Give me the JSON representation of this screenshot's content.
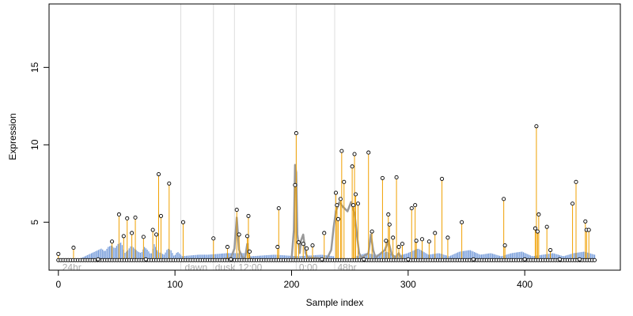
{
  "chart_data": {
    "type": "line",
    "title": "",
    "xlabel": "Sample index",
    "ylabel": "Expression",
    "xlim": [
      -8,
      482
    ],
    "ylim": [
      1.9,
      19.1
    ],
    "xticks": [
      0,
      100,
      200,
      300,
      400
    ],
    "yticks": [
      5,
      10,
      15
    ],
    "grid": false,
    "legend": "none",
    "colors": {
      "stem": "#f0a000",
      "bar": "#6f97d8",
      "curve": "#999999",
      "point_edge": "#000000",
      "divider": "#dddddd",
      "annotation": "#aaaaaa"
    },
    "baseline": 2.55,
    "divider_lines": [
      105,
      133,
      151,
      204,
      237
    ],
    "annotations": [
      {
        "text": "24hr",
        "x": 2
      },
      {
        "text": "dawn",
        "x": 107
      },
      {
        "text": "dusk",
        "x": 133
      },
      {
        "text": "12:00",
        "x": 153
      },
      {
        "text": "0:00",
        "x": 205
      },
      {
        "text": "48hr",
        "x": 238
      }
    ],
    "bar_segments": [
      {
        "start": 20,
        "end": 105,
        "values": [
          2.7,
          2.8,
          2.9,
          3.0,
          3.1,
          3.2,
          3.3,
          3.1,
          3.4,
          3.5,
          3.3,
          3.6,
          3.7,
          3.0,
          3.2,
          3.5,
          3.3,
          3.1,
          3.0,
          3.4,
          3.2,
          2.9,
          3.6,
          3.1,
          3.0,
          2.9,
          3.3,
          3.2,
          2.8,
          3.1,
          2.9
        ]
      },
      {
        "start": 105,
        "end": 160,
        "values": [
          2.8,
          2.85,
          2.9,
          2.9,
          2.95,
          3.0,
          3.0,
          3.0
        ]
      },
      {
        "start": 165,
        "end": 236,
        "values": [
          2.8,
          2.85,
          2.9,
          2.85,
          2.8,
          2.85,
          2.9,
          2.8
        ]
      },
      {
        "start": 255,
        "end": 460,
        "values": [
          2.8,
          3.0,
          2.9,
          3.1,
          2.8,
          3.0,
          3.3,
          2.9,
          3.0,
          2.8,
          3.1,
          3.2,
          2.9,
          3.0,
          2.8,
          3.0,
          3.1,
          2.8,
          2.9,
          3.0,
          2.8,
          3.0,
          3.1,
          2.9
        ]
      }
    ],
    "curve": [
      [
        140,
        2.6
      ],
      [
        148,
        2.7
      ],
      [
        151,
        3.3
      ],
      [
        153,
        5.3
      ],
      [
        155,
        3.2
      ],
      [
        158,
        2.7
      ],
      [
        160,
        2.6
      ],
      [
        162,
        3.6
      ],
      [
        164,
        2.7
      ],
      [
        166,
        2.6
      ],
      [
        200,
        2.6
      ],
      [
        202,
        4.5
      ],
      [
        203,
        8.7
      ],
      [
        204,
        8.2
      ],
      [
        205,
        4.2
      ],
      [
        207,
        3.0
      ],
      [
        208,
        3.8
      ],
      [
        210,
        4.2
      ],
      [
        212,
        3.0
      ],
      [
        214,
        2.7
      ],
      [
        222,
        2.7
      ],
      [
        230,
        2.6
      ],
      [
        234,
        3.2
      ],
      [
        236,
        4.6
      ],
      [
        238,
        5.7
      ],
      [
        241,
        6.3
      ],
      [
        244,
        6.0
      ],
      [
        248,
        5.7
      ],
      [
        251,
        6.3
      ],
      [
        254,
        5.6
      ],
      [
        256,
        4.2
      ],
      [
        258,
        3.0
      ],
      [
        260,
        2.7
      ],
      [
        266,
        3.0
      ],
      [
        268,
        4.2
      ],
      [
        270,
        3.2
      ],
      [
        272,
        2.7
      ],
      [
        280,
        3.2
      ],
      [
        283,
        3.8
      ],
      [
        286,
        2.9
      ],
      [
        289,
        2.7
      ],
      [
        292,
        3.0
      ],
      [
        294,
        2.7
      ]
    ],
    "stems": [
      [
        0,
        2.95
      ],
      [
        13,
        3.35
      ],
      [
        46,
        3.75
      ],
      [
        52,
        5.5
      ],
      [
        56,
        4.1
      ],
      [
        59,
        5.25
      ],
      [
        63,
        4.3
      ],
      [
        66,
        5.3
      ],
      [
        73,
        4.05
      ],
      [
        81,
        4.5
      ],
      [
        84,
        4.2
      ],
      [
        86,
        8.1
      ],
      [
        88,
        5.4
      ],
      [
        95,
        7.5
      ],
      [
        107,
        5.0
      ],
      [
        133,
        3.95
      ],
      [
        145,
        3.4
      ],
      [
        153,
        5.8
      ],
      [
        155,
        4.2
      ],
      [
        162,
        4.1
      ],
      [
        163,
        5.4
      ],
      [
        164,
        3.1
      ],
      [
        188,
        3.4
      ],
      [
        189,
        5.9
      ],
      [
        204,
        10.75
      ],
      [
        203,
        7.4
      ],
      [
        206,
        3.7
      ],
      [
        210,
        3.6
      ],
      [
        213,
        3.3
      ],
      [
        218,
        3.5
      ],
      [
        228,
        4.3
      ],
      [
        238,
        6.9
      ],
      [
        239,
        6.1
      ],
      [
        240,
        5.2
      ],
      [
        242,
        6.5
      ],
      [
        243,
        9.6
      ],
      [
        245,
        7.6
      ],
      [
        252,
        8.6
      ],
      [
        253,
        6.1
      ],
      [
        254,
        9.4
      ],
      [
        255,
        6.8
      ],
      [
        257,
        6.2
      ],
      [
        266,
        9.5
      ],
      [
        269,
        4.4
      ],
      [
        278,
        7.85
      ],
      [
        281,
        3.8
      ],
      [
        283,
        5.5
      ],
      [
        284,
        4.85
      ],
      [
        287,
        4.0
      ],
      [
        290,
        7.9
      ],
      [
        292,
        3.4
      ],
      [
        295,
        3.6
      ],
      [
        303,
        5.9
      ],
      [
        306,
        6.1
      ],
      [
        307,
        3.8
      ],
      [
        312,
        3.9
      ],
      [
        318,
        3.75
      ],
      [
        323,
        4.3
      ],
      [
        329,
        7.8
      ],
      [
        334,
        4.0
      ],
      [
        346,
        5.0
      ],
      [
        382,
        6.5
      ],
      [
        383,
        3.5
      ],
      [
        409,
        4.6
      ],
      [
        410,
        11.2
      ],
      [
        411,
        4.4
      ],
      [
        412,
        5.5
      ],
      [
        419,
        4.7
      ],
      [
        422,
        3.2
      ],
      [
        441,
        6.2
      ],
      [
        444,
        7.6
      ],
      [
        452,
        5.05
      ],
      [
        453,
        4.5
      ],
      [
        455,
        4.5
      ]
    ],
    "baseline_points": {
      "start": 0,
      "end": 460,
      "step": 2.1
    },
    "open_points": [
      [
        34,
        2.6
      ],
      [
        75,
        2.6
      ],
      [
        148,
        2.6
      ],
      [
        226,
        2.6
      ],
      [
        262,
        2.6
      ],
      [
        300,
        2.6
      ],
      [
        356,
        2.6
      ],
      [
        400,
        2.6
      ],
      [
        430,
        2.6
      ],
      [
        447,
        2.6
      ]
    ]
  }
}
